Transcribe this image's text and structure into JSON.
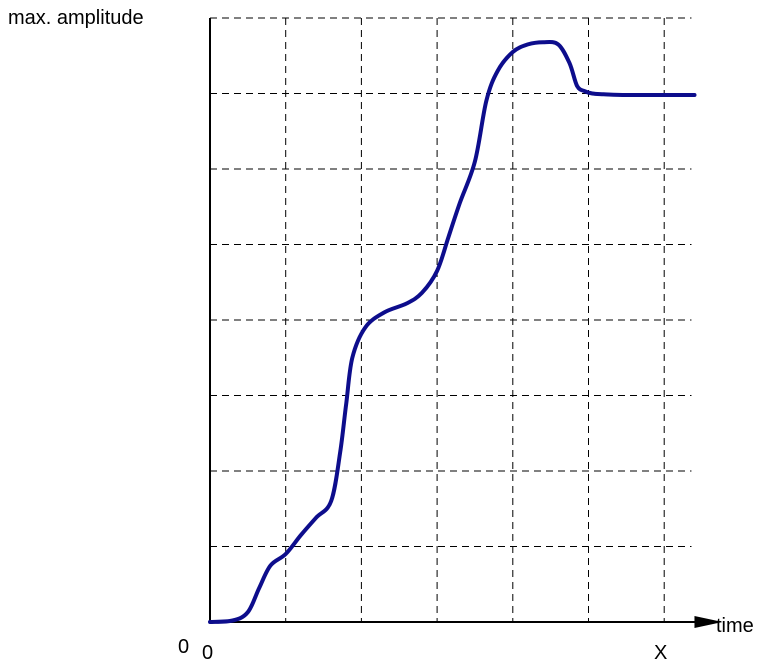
{
  "chart_data": {
    "type": "line",
    "title": "",
    "ylabel": "max. amplitude",
    "xlabel": "time",
    "x_tick_labels": {
      "start": "0",
      "end": "X"
    },
    "y_tick_labels": {
      "start": "0"
    },
    "xlim": [
      0,
      6.4
    ],
    "ylim": [
      0,
      8
    ],
    "grid": true,
    "series": [
      {
        "color": "#0d0d8c",
        "x": [
          0,
          0.3,
          0.5,
          0.65,
          0.8,
          1.0,
          1.2,
          1.4,
          1.6,
          1.72,
          1.8,
          1.88,
          2.05,
          2.3,
          2.6,
          2.8,
          3.0,
          3.15,
          3.3,
          3.5,
          3.65,
          3.8,
          4.0,
          4.2,
          4.4,
          4.6,
          4.75,
          4.85,
          4.95,
          5.05,
          5.2,
          5.5,
          6.0,
          6.4
        ],
        "y": [
          0.0,
          0.02,
          0.13,
          0.45,
          0.75,
          0.9,
          1.15,
          1.38,
          1.6,
          2.25,
          2.9,
          3.5,
          3.9,
          4.1,
          4.22,
          4.36,
          4.65,
          5.1,
          5.55,
          6.1,
          6.9,
          7.3,
          7.55,
          7.65,
          7.68,
          7.65,
          7.4,
          7.1,
          7.03,
          7.0,
          6.99,
          6.98,
          6.98,
          6.98
        ]
      }
    ]
  }
}
